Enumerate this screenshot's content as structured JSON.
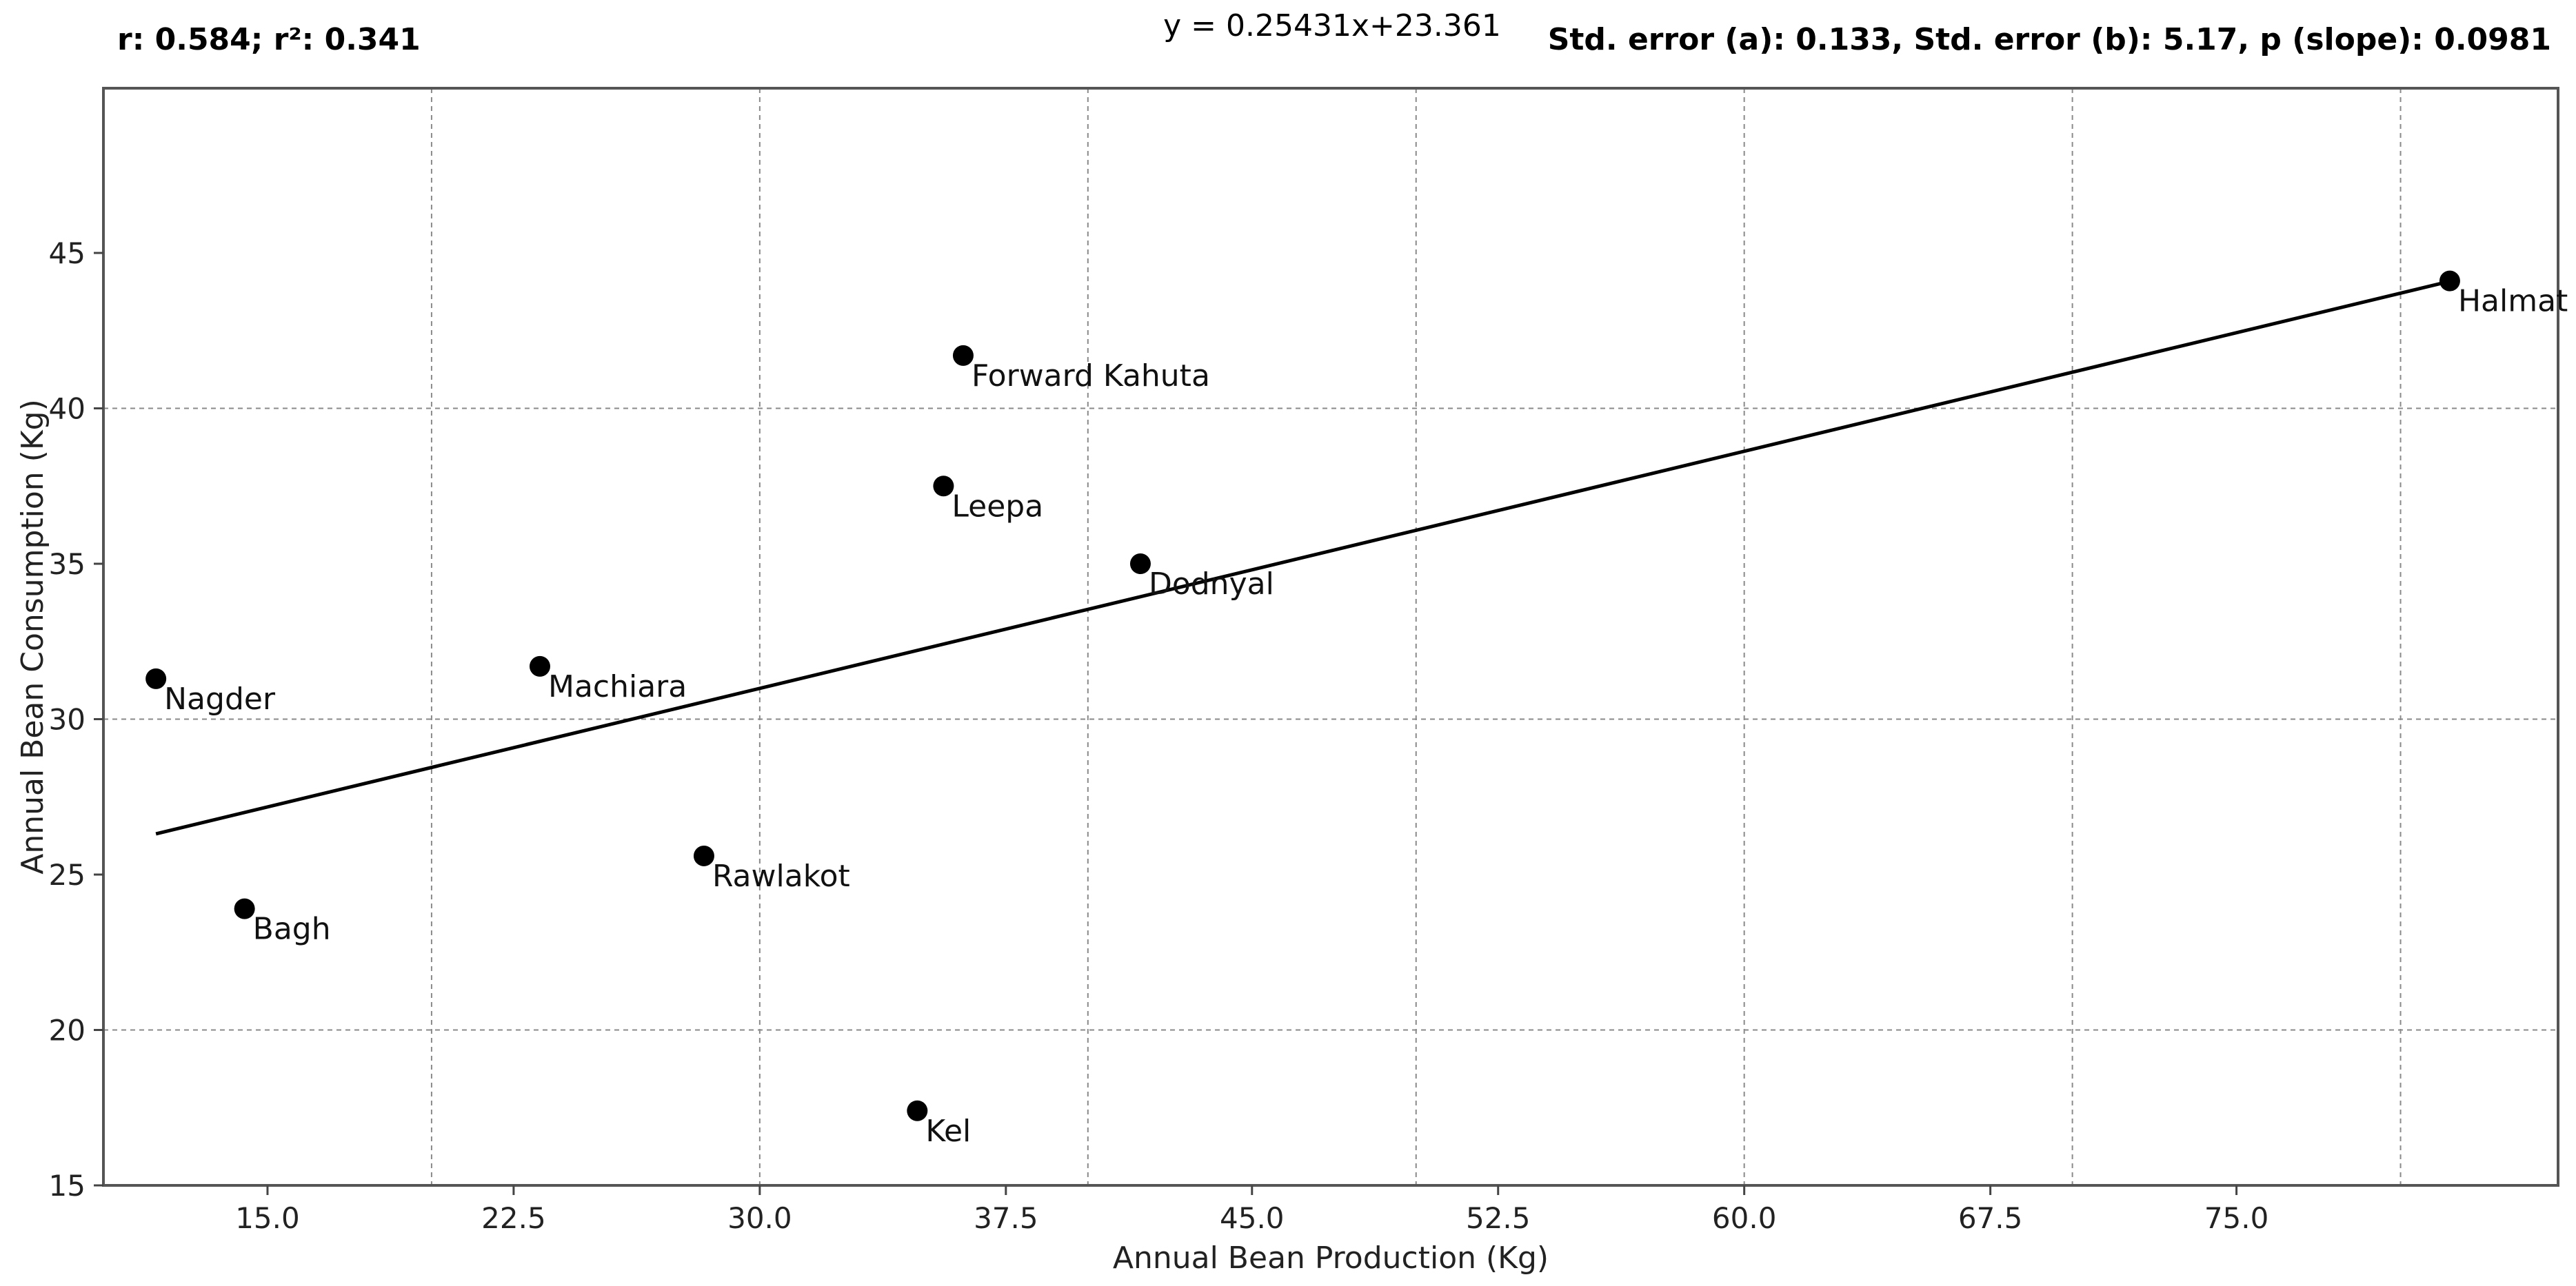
{
  "header": {
    "stats_left": "r: 0.584;   r²: 0.341",
    "equation": "y = 0.25431x+23.361",
    "stats_right": "Std. error (a): 0.133, Std. error (b): 5.17, p (slope): 0.0981"
  },
  "chart_data": {
    "type": "scatter",
    "title": "",
    "xlabel": "Annual Bean Production (Kg)",
    "ylabel": "Annual Bean Consumption (Kg)",
    "xlim": [
      10.0,
      84.8
    ],
    "ylim": [
      15,
      50.3
    ],
    "x_ticks": [
      15.0,
      22.5,
      30.0,
      37.5,
      45.0,
      52.5,
      60.0,
      67.5,
      75.0
    ],
    "x_tick_labels": [
      "15.0",
      "22.5",
      "30.0",
      "37.5",
      "45.0",
      "52.5",
      "60.0",
      "67.5",
      "75.0"
    ],
    "y_ticks": [
      15,
      20,
      25,
      30,
      35,
      40,
      45
    ],
    "y_tick_labels": [
      "15",
      "20",
      "25",
      "30",
      "35",
      "40",
      "45"
    ],
    "x_grid": [
      20,
      30,
      40,
      50,
      60,
      70,
      80
    ],
    "y_grid": [
      20,
      30,
      40
    ],
    "grid": true,
    "points": [
      {
        "label": "Nagder",
        "x": 11.6,
        "y": 31.3
      },
      {
        "label": "Bagh",
        "x": 14.3,
        "y": 23.9
      },
      {
        "label": "Machiara",
        "x": 23.3,
        "y": 31.7
      },
      {
        "label": "Rawlakot",
        "x": 28.3,
        "y": 25.6
      },
      {
        "label": "Kel",
        "x": 34.8,
        "y": 17.4
      },
      {
        "label": "Leepa",
        "x": 35.6,
        "y": 37.5
      },
      {
        "label": "Forward Kahuta",
        "x": 36.2,
        "y": 41.7
      },
      {
        "label": "Dodnyal",
        "x": 41.6,
        "y": 35.0
      },
      {
        "label": "Halmat",
        "x": 81.5,
        "y": 44.1
      }
    ],
    "regression": {
      "slope": 0.25431,
      "intercept": 23.361,
      "x_start": 11.6,
      "x_end": 81.5
    },
    "colors": {
      "points": "#000000",
      "line": "#000000",
      "grid": "#8a8a8a"
    }
  }
}
